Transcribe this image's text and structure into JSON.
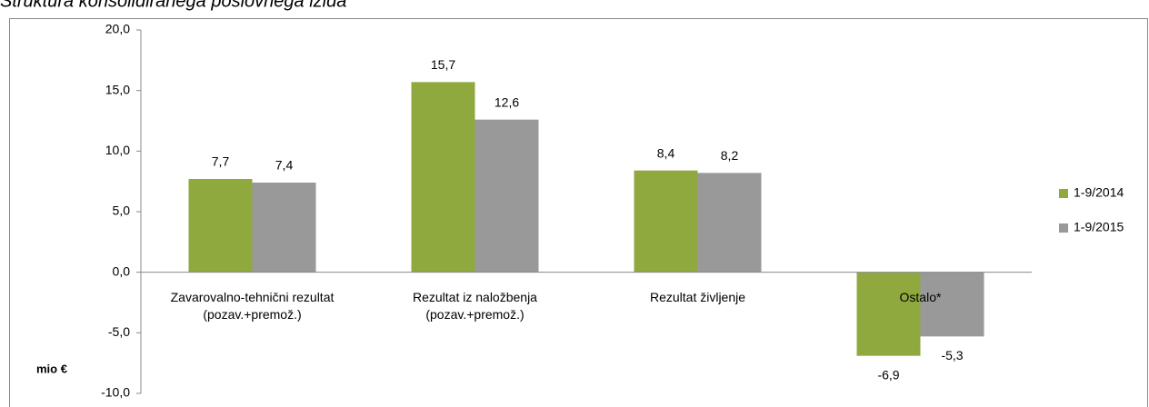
{
  "chart_data": {
    "type": "bar",
    "title": "Struktura konsolidiranega poslovnega izida",
    "y_axis_label": "mio €",
    "categories": [
      "Zavarovalno-tehnični rezultat (pozav.+premož.)",
      "Rezultat iz naložbenja (pozav.+premož.)",
      "Rezultat življenje",
      "Ostalo*"
    ],
    "series": [
      {
        "name": "1-9/2014",
        "color": "#8fa93f",
        "values": [
          7.7,
          15.7,
          8.4,
          -6.9
        ],
        "value_labels": [
          "7,7",
          "15,7",
          "8,4",
          "-6,9"
        ]
      },
      {
        "name": "1-9/2015",
        "color": "#999999",
        "values": [
          7.4,
          12.6,
          8.2,
          -5.3
        ],
        "value_labels": [
          "7,4",
          "12,6",
          "8,2",
          "-5,3"
        ]
      }
    ],
    "ylim": [
      -10,
      20
    ],
    "yticks": [
      {
        "value": -10,
        "label": "-10,0"
      },
      {
        "value": -5,
        "label": "-5,0"
      },
      {
        "value": 0,
        "label": "0,0"
      },
      {
        "value": 5,
        "label": "5,0"
      },
      {
        "value": 10,
        "label": "10,0"
      },
      {
        "value": 15,
        "label": "15,0"
      },
      {
        "value": 20,
        "label": "20,0"
      }
    ],
    "legend": "right"
  }
}
